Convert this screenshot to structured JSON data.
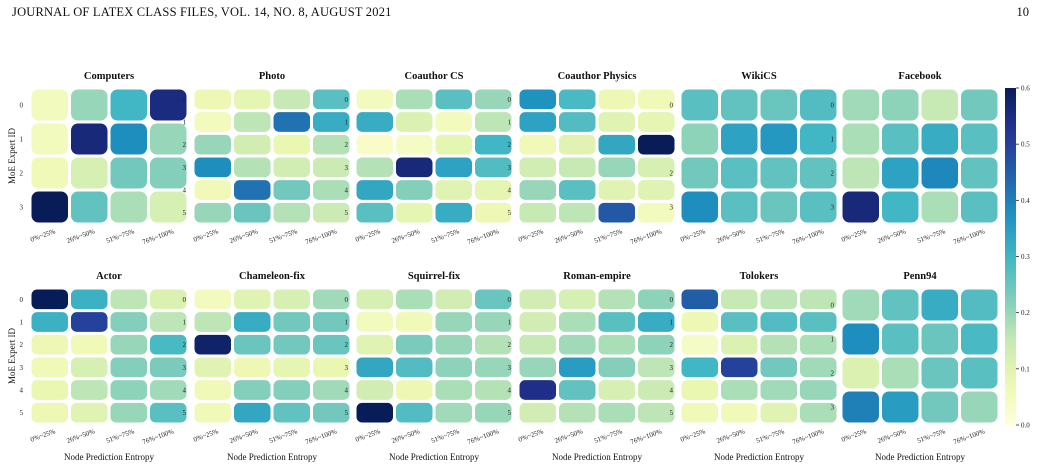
{
  "page_header": {
    "journal": "JOURNAL OF LATEX CLASS FILES, VOL. 14, NO. 8, AUGUST 2021",
    "page_number": "10"
  },
  "shared": {
    "ylabel": "MoE Expert ID",
    "xlabel": "Node Prediction Entropy",
    "x_categories": [
      "0%~25%",
      "26%~50%",
      "51%~75%",
      "76%~100%"
    ],
    "colormap": "YlGnBu",
    "colorbar": {
      "min": 0.0,
      "max": 0.6,
      "ticks": [
        "0.0",
        "0.1",
        "0.2",
        "0.3",
        "0.4",
        "0.5",
        "0.6"
      ]
    }
  },
  "chart_data": [
    {
      "type": "heatmap",
      "title": "Computers",
      "rows": [
        "0",
        "1",
        "2",
        "3"
      ],
      "values": [
        [
          0.05,
          0.2,
          0.3,
          0.55
        ],
        [
          0.05,
          0.56,
          0.38,
          0.2
        ],
        [
          0.06,
          0.12,
          0.24,
          0.22
        ],
        [
          0.6,
          0.26,
          0.18,
          0.12
        ]
      ]
    },
    {
      "type": "heatmap",
      "title": "Photo",
      "rows": [
        "0",
        "1",
        "2",
        "3",
        "4",
        "5"
      ],
      "values": [
        [
          0.07,
          0.09,
          0.15,
          0.27
        ],
        [
          0.05,
          0.16,
          0.42,
          0.32
        ],
        [
          0.2,
          0.13,
          0.08,
          0.17
        ],
        [
          0.38,
          0.17,
          0.13,
          0.14
        ],
        [
          0.06,
          0.42,
          0.24,
          0.18
        ],
        [
          0.2,
          0.25,
          0.17,
          0.14
        ]
      ]
    },
    {
      "type": "heatmap",
      "title": "Coauthor CS",
      "rows": [
        "0",
        "1",
        "2",
        "3",
        "4",
        "5"
      ],
      "values": [
        [
          0.05,
          0.18,
          0.27,
          0.2
        ],
        [
          0.32,
          0.11,
          0.05,
          0.16
        ],
        [
          0.03,
          0.04,
          0.09,
          0.3
        ],
        [
          0.17,
          0.56,
          0.34,
          0.28
        ],
        [
          0.33,
          0.22,
          0.1,
          0.09
        ],
        [
          0.27,
          0.09,
          0.32,
          0.07
        ]
      ]
    },
    {
      "type": "heatmap",
      "title": "Coauthor Physics",
      "rows": [
        "0",
        "1",
        "2",
        "3",
        "4",
        "5"
      ],
      "values": [
        [
          0.37,
          0.29,
          0.07,
          0.06
        ],
        [
          0.34,
          0.28,
          0.1,
          0.09
        ],
        [
          0.06,
          0.1,
          0.33,
          0.6
        ],
        [
          0.13,
          0.15,
          0.2,
          0.12
        ],
        [
          0.2,
          0.27,
          0.1,
          0.1
        ],
        [
          0.15,
          0.16,
          0.46,
          0.05
        ]
      ]
    },
    {
      "type": "heatmap",
      "title": "WikiCS",
      "rows": [
        "0",
        "1",
        "2",
        "3"
      ],
      "values": [
        [
          0.27,
          0.26,
          0.25,
          0.28
        ],
        [
          0.21,
          0.34,
          0.36,
          0.3
        ],
        [
          0.24,
          0.27,
          0.26,
          0.26
        ],
        [
          0.38,
          0.27,
          0.25,
          0.27
        ]
      ]
    },
    {
      "type": "heatmap",
      "title": "Facebook",
      "rows": [
        "0",
        "1",
        "2",
        "3"
      ],
      "values": [
        [
          0.19,
          0.21,
          0.15,
          0.24
        ],
        [
          0.18,
          0.27,
          0.32,
          0.27
        ],
        [
          0.16,
          0.34,
          0.39,
          0.26
        ],
        [
          0.56,
          0.3,
          0.18,
          0.27
        ]
      ]
    },
    {
      "type": "heatmap",
      "title": "Actor",
      "rows": [
        "0",
        "1",
        "2",
        "3",
        "4",
        "5"
      ],
      "values": [
        [
          0.6,
          0.31,
          0.16,
          0.11
        ],
        [
          0.31,
          0.5,
          0.22,
          0.16
        ],
        [
          0.07,
          0.06,
          0.2,
          0.29
        ],
        [
          0.06,
          0.12,
          0.22,
          0.23
        ],
        [
          0.08,
          0.16,
          0.21,
          0.19
        ],
        [
          0.07,
          0.1,
          0.2,
          0.27
        ]
      ]
    },
    {
      "type": "heatmap",
      "title": "Chameleon-fix",
      "rows": [
        "0",
        "1",
        "2",
        "3",
        "4",
        "5"
      ],
      "values": [
        [
          0.05,
          0.1,
          0.12,
          0.19
        ],
        [
          0.16,
          0.32,
          0.24,
          0.24
        ],
        [
          0.58,
          0.25,
          0.24,
          0.25
        ],
        [
          0.1,
          0.07,
          0.09,
          0.08
        ],
        [
          0.06,
          0.22,
          0.22,
          0.19
        ],
        [
          0.06,
          0.33,
          0.26,
          0.24
        ]
      ]
    },
    {
      "type": "heatmap",
      "title": "Squirrel-fix",
      "rows": [
        "0",
        "1",
        "2",
        "3",
        "4",
        "5"
      ],
      "values": [
        [
          0.12,
          0.18,
          0.13,
          0.25
        ],
        [
          0.05,
          0.06,
          0.2,
          0.2
        ],
        [
          0.1,
          0.23,
          0.2,
          0.17
        ],
        [
          0.33,
          0.28,
          0.21,
          0.2
        ],
        [
          0.13,
          0.07,
          0.18,
          0.17
        ],
        [
          0.6,
          0.28,
          0.19,
          0.2
        ]
      ]
    },
    {
      "type": "heatmap",
      "title": "Roman-empire",
      "rows": [
        "0",
        "1",
        "2",
        "3",
        "4",
        "5"
      ],
      "values": [
        [
          0.13,
          0.12,
          0.17,
          0.21
        ],
        [
          0.13,
          0.18,
          0.27,
          0.32
        ],
        [
          0.15,
          0.19,
          0.18,
          0.21
        ],
        [
          0.2,
          0.35,
          0.22,
          0.16
        ],
        [
          0.54,
          0.26,
          0.12,
          0.14
        ],
        [
          0.13,
          0.17,
          0.18,
          0.16
        ]
      ]
    },
    {
      "type": "heatmap",
      "title": "Tolokers",
      "rows": [
        "0",
        "1",
        "2",
        "3",
        "4",
        "5"
      ],
      "values": [
        [
          0.45,
          0.15,
          0.16,
          0.16
        ],
        [
          0.07,
          0.27,
          0.28,
          0.27
        ],
        [
          0.04,
          0.11,
          0.17,
          0.18
        ],
        [
          0.3,
          0.5,
          0.24,
          0.19
        ],
        [
          0.08,
          0.18,
          0.19,
          0.2
        ],
        [
          0.06,
          0.06,
          0.1,
          0.18
        ]
      ]
    },
    {
      "type": "heatmap",
      "title": "Penn94",
      "rows": [
        "0",
        "1",
        "2",
        "3"
      ],
      "values": [
        [
          0.19,
          0.26,
          0.32,
          0.28
        ],
        [
          0.38,
          0.27,
          0.25,
          0.29
        ],
        [
          0.11,
          0.18,
          0.25,
          0.27
        ],
        [
          0.4,
          0.35,
          0.24,
          0.2
        ]
      ]
    }
  ]
}
